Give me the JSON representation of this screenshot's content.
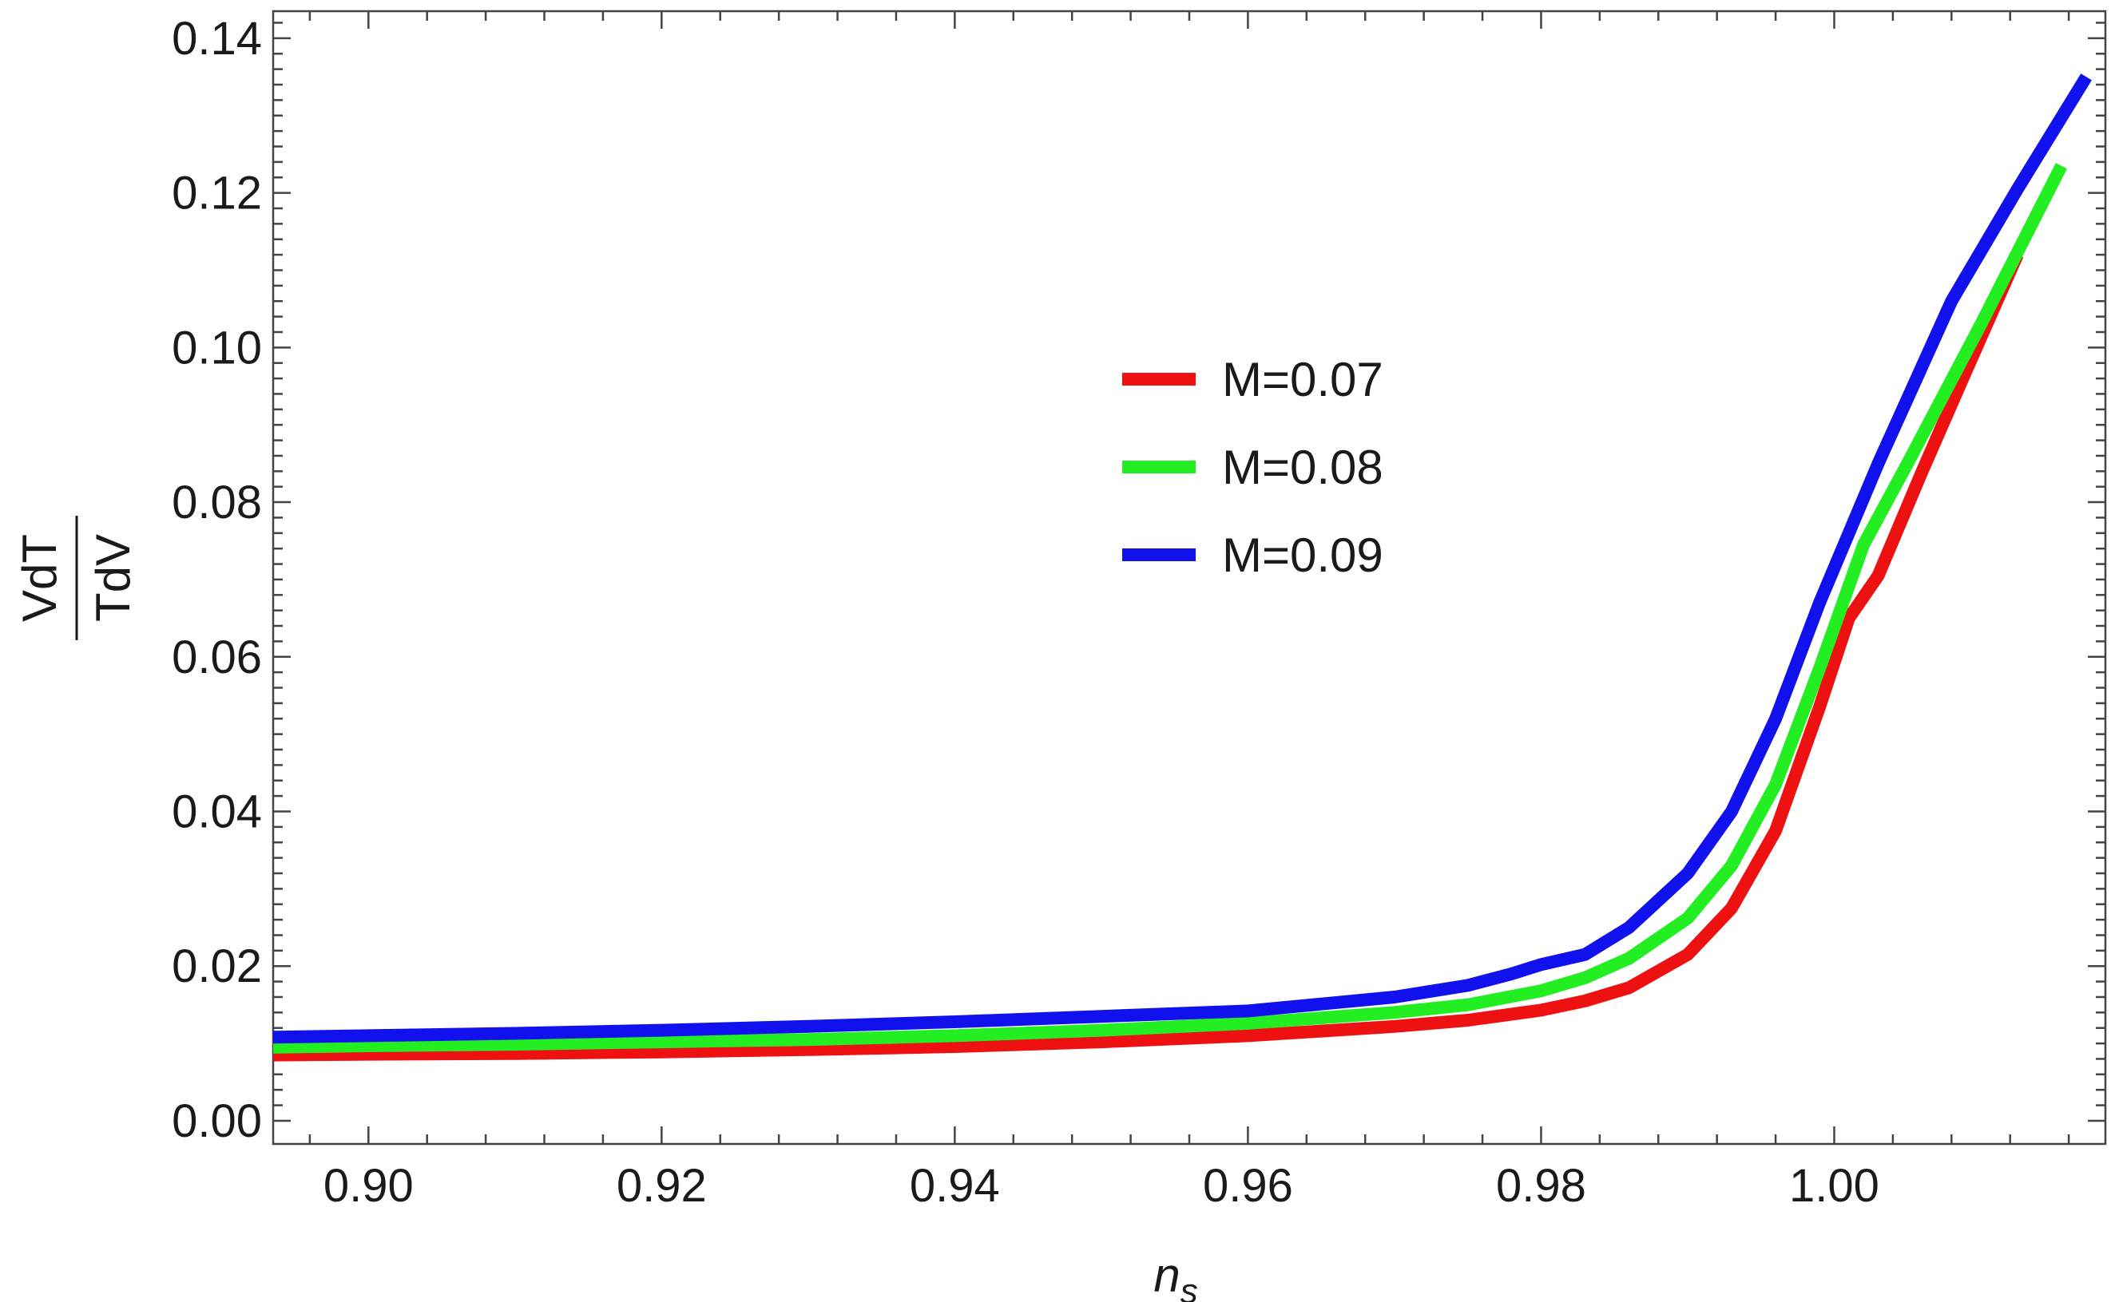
{
  "chart_data": {
    "type": "line",
    "title": "",
    "xlabel": "n",
    "xlabel_subscript": "s",
    "ylabel_numerator": "VdT",
    "ylabel_denominator": "TdV",
    "xlim": [
      0.8935,
      1.0185
    ],
    "ylim": [
      -0.003,
      0.1435
    ],
    "xticks": [
      0.9,
      0.92,
      0.94,
      0.96,
      0.98,
      1.0
    ],
    "xtick_labels": [
      "0.90",
      "0.92",
      "0.94",
      "0.96",
      "0.98",
      "1.00"
    ],
    "yticks": [
      0.0,
      0.02,
      0.04,
      0.06,
      0.08,
      0.1,
      0.12,
      0.14
    ],
    "ytick_labels": [
      "0.00",
      "0.02",
      "0.04",
      "0.06",
      "0.08",
      "0.10",
      "0.12",
      "0.14"
    ],
    "grid": false,
    "legend_position": "center",
    "series": [
      {
        "name": "M=0.07",
        "color": "#ee1111",
        "x": [
          0.8935,
          0.9,
          0.91,
          0.92,
          0.93,
          0.94,
          0.95,
          0.96,
          0.97,
          0.975,
          0.98,
          0.983,
          0.986,
          0.99,
          0.993,
          0.996,
          0.999,
          1.001,
          1.003,
          1.006,
          1.009,
          1.0125
        ],
        "y": [
          0.0085,
          0.0086,
          0.0087,
          0.0089,
          0.0092,
          0.0096,
          0.0102,
          0.011,
          0.0122,
          0.013,
          0.0143,
          0.0155,
          0.0172,
          0.0215,
          0.0275,
          0.0375,
          0.0535,
          0.065,
          0.0705,
          0.084,
          0.097,
          0.112
        ]
      },
      {
        "name": "M=0.08",
        "color": "#22ee22",
        "x": [
          0.8935,
          0.9,
          0.91,
          0.92,
          0.93,
          0.94,
          0.95,
          0.96,
          0.97,
          0.975,
          0.98,
          0.983,
          0.986,
          0.99,
          0.993,
          0.996,
          0.999,
          1.002,
          1.005,
          1.01,
          1.0155
        ],
        "y": [
          0.0095,
          0.0097,
          0.0099,
          0.0102,
          0.0105,
          0.011,
          0.0117,
          0.0126,
          0.014,
          0.015,
          0.0168,
          0.0185,
          0.021,
          0.0262,
          0.033,
          0.0435,
          0.0585,
          0.0745,
          0.085,
          0.103,
          0.1235
        ]
      },
      {
        "name": "M=0.09",
        "color": "#1111ee",
        "x": [
          0.8935,
          0.9,
          0.91,
          0.92,
          0.93,
          0.94,
          0.95,
          0.96,
          0.97,
          0.975,
          0.978,
          0.98,
          0.983,
          0.986,
          0.99,
          0.993,
          0.996,
          0.999,
          1.003,
          1.008,
          1.0125,
          1.0172
        ],
        "y": [
          0.0108,
          0.011,
          0.0113,
          0.0117,
          0.0122,
          0.0128,
          0.0135,
          0.0142,
          0.016,
          0.0175,
          0.019,
          0.0202,
          0.0215,
          0.025,
          0.032,
          0.04,
          0.052,
          0.067,
          0.085,
          0.106,
          0.1205,
          0.135
        ]
      }
    ]
  }
}
